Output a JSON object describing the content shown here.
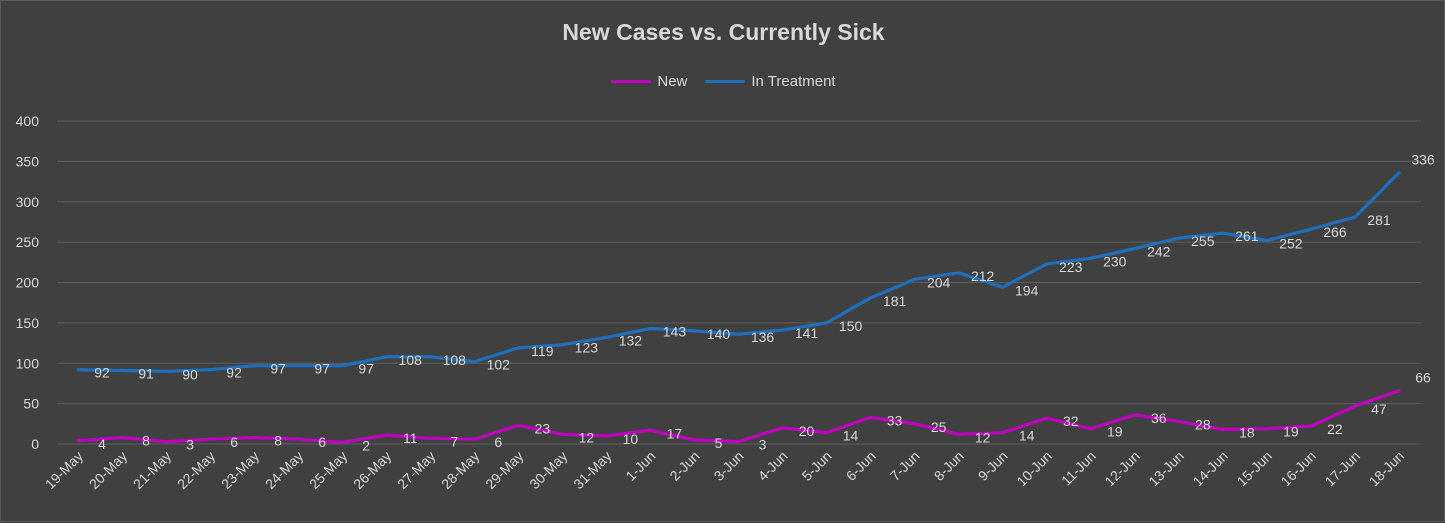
{
  "chart_data": {
    "type": "line",
    "title": "New Cases vs. Currently Sick",
    "xlabel": "",
    "ylabel": "",
    "ylim": [
      0,
      400
    ],
    "yticks": [
      0,
      50,
      100,
      150,
      200,
      250,
      300,
      350,
      400
    ],
    "grid": true,
    "legend_position": "top-center",
    "background_color": "#404040",
    "categories": [
      "19-May",
      "20-May",
      "21-May",
      "22-May",
      "23-May",
      "24-May",
      "25-May",
      "26-May",
      "27-May",
      "28-May",
      "29-May",
      "30-May",
      "31-May",
      "1-Jun",
      "2-Jun",
      "3-Jun",
      "4-Jun",
      "5-Jun",
      "6-Jun",
      "7-Jun",
      "8-Jun",
      "9-Jun",
      "10-Jun",
      "11-Jun",
      "12-Jun",
      "13-Jun",
      "14-Jun",
      "15-Jun",
      "16-Jun",
      "17-Jun",
      "18-Jun"
    ],
    "series": [
      {
        "name": "New",
        "color": "#c000c0",
        "values": [
          4,
          8,
          3,
          6,
          8,
          6,
          2,
          11,
          7,
          6,
          23,
          12,
          10,
          17,
          5,
          3,
          20,
          14,
          33,
          25,
          12,
          14,
          32,
          19,
          36,
          28,
          18,
          19,
          22,
          47,
          66
        ]
      },
      {
        "name": "In Treatment",
        "color": "#1f6fbf",
        "values": [
          92,
          91,
          90,
          92,
          97,
          97,
          97,
          108,
          108,
          102,
          119,
          123,
          132,
          143,
          140,
          136,
          141,
          150,
          181,
          204,
          212,
          194,
          223,
          230,
          242,
          255,
          261,
          252,
          266,
          281,
          336
        ]
      }
    ]
  }
}
